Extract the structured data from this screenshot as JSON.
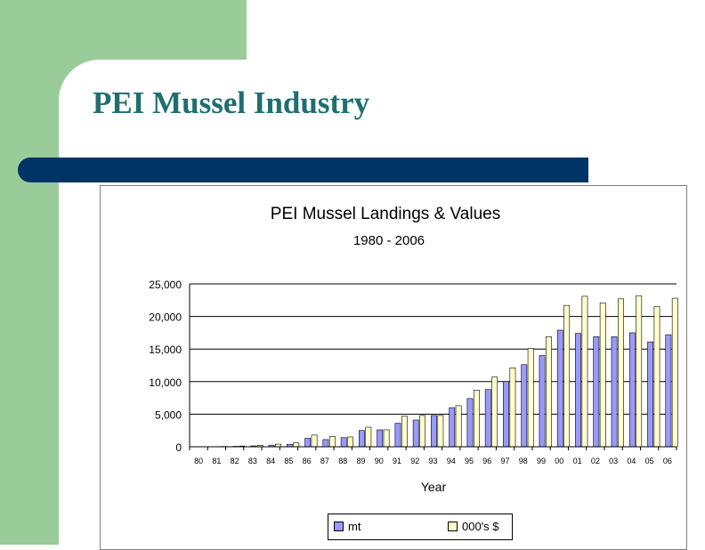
{
  "slide": {
    "title": "PEI Mussel Industry"
  },
  "chart_data": {
    "type": "bar",
    "title": "PEI Mussel Landings & Values",
    "subtitle": "1980 - 2006",
    "xlabel": "Year",
    "ylabel": "",
    "ylim": [
      0,
      25000
    ],
    "yticks": [
      "0",
      "5,000",
      "10,000",
      "15,000",
      "20,000",
      "25,000"
    ],
    "ytick_values": [
      0,
      5000,
      10000,
      15000,
      20000,
      25000
    ],
    "grid": true,
    "legend_position": "bottom",
    "categories": [
      "80",
      "81",
      "82",
      "83",
      "84",
      "85",
      "86",
      "87",
      "88",
      "89",
      "90",
      "91",
      "92",
      "93",
      "94",
      "95",
      "96",
      "97",
      "98",
      "99",
      "00",
      "01",
      "02",
      "03",
      "04",
      "05",
      "06"
    ],
    "series": [
      {
        "name": "mt",
        "color": "#9999ff",
        "values": [
          10,
          30,
          70,
          140,
          250,
          380,
          1300,
          1100,
          1400,
          2500,
          2600,
          3600,
          4100,
          4800,
          6000,
          7400,
          8800,
          10000,
          12600,
          14000,
          17900,
          17400,
          16900,
          16900,
          17500,
          16100,
          17200
        ]
      },
      {
        "name": "000's $",
        "color": "#ffffcc",
        "values": [
          20,
          50,
          110,
          230,
          400,
          600,
          1800,
          1600,
          1500,
          3000,
          2600,
          4700,
          4800,
          4800,
          6300,
          8700,
          10700,
          12100,
          15100,
          16900,
          21700,
          23100,
          22100,
          22700,
          23200,
          21500,
          22800
        ]
      }
    ]
  }
}
